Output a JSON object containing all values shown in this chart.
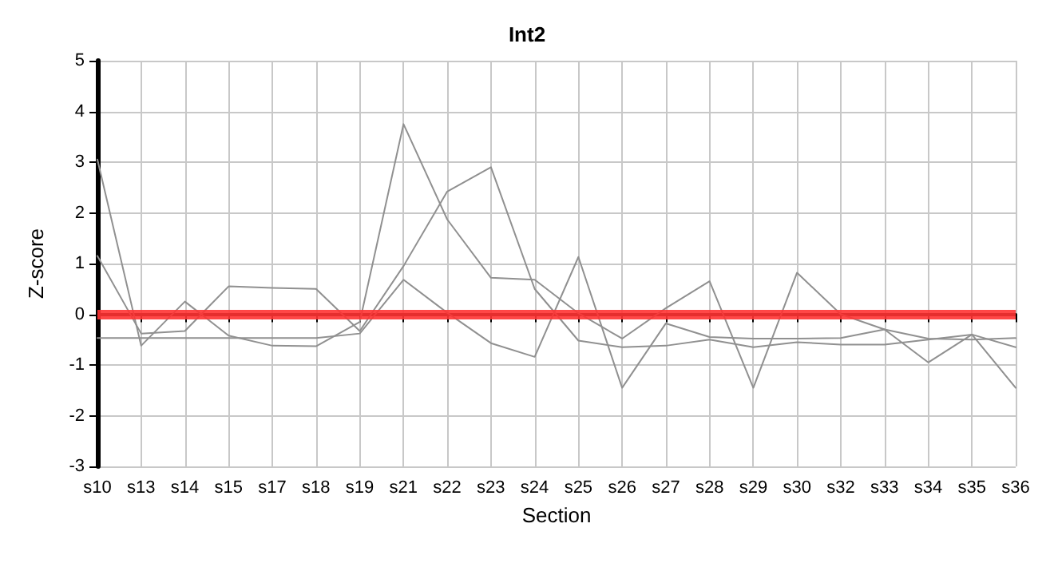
{
  "chart_data": {
    "type": "line",
    "title": "Int2",
    "xlabel": "Section",
    "ylabel": "Z-score",
    "categories": [
      "s10",
      "s13",
      "s14",
      "s15",
      "s17",
      "s18",
      "s19",
      "s21",
      "s22",
      "s23",
      "s24",
      "s25",
      "s26",
      "s27",
      "s28",
      "s29",
      "s30",
      "s32",
      "s33",
      "s34",
      "s35",
      "s36"
    ],
    "series": [
      {
        "color": "#909090",
        "values": [
          3.05,
          -0.62,
          0.25,
          -0.42,
          -0.62,
          -0.63,
          -0.15,
          3.75,
          1.87,
          0.72,
          0.68,
          0.02,
          -0.48,
          0.12,
          0.65,
          -1.45,
          0.82,
          0.0,
          -0.3,
          -0.95,
          -0.4,
          -1.45
        ]
      },
      {
        "color": "#909090",
        "values": [
          1.15,
          -0.38,
          -0.33,
          0.55,
          0.52,
          0.5,
          -0.33,
          0.95,
          2.42,
          2.9,
          0.5,
          -0.52,
          -0.65,
          -0.62,
          -0.5,
          -0.65,
          -0.55,
          -0.6,
          -0.6,
          -0.5,
          -0.4,
          -0.65
        ]
      },
      {
        "color": "#909090",
        "values": [
          -0.47,
          -0.47,
          -0.47,
          -0.47,
          -0.47,
          -0.47,
          -0.38,
          0.68,
          0.03,
          -0.57,
          -0.84,
          1.13,
          -1.45,
          -0.18,
          -0.45,
          -0.48,
          -0.48,
          -0.47,
          -0.3,
          -0.48,
          -0.5,
          -0.47
        ]
      }
    ],
    "ylim": [
      -3,
      5
    ],
    "yticks": [
      -3,
      -2,
      -1,
      0,
      1,
      2,
      3,
      4,
      5
    ],
    "ref_lines": [
      {
        "axis": "y",
        "value": 0,
        "color": "#ff3333"
      }
    ],
    "grid": true,
    "marker": "none",
    "line_style": "solid"
  }
}
